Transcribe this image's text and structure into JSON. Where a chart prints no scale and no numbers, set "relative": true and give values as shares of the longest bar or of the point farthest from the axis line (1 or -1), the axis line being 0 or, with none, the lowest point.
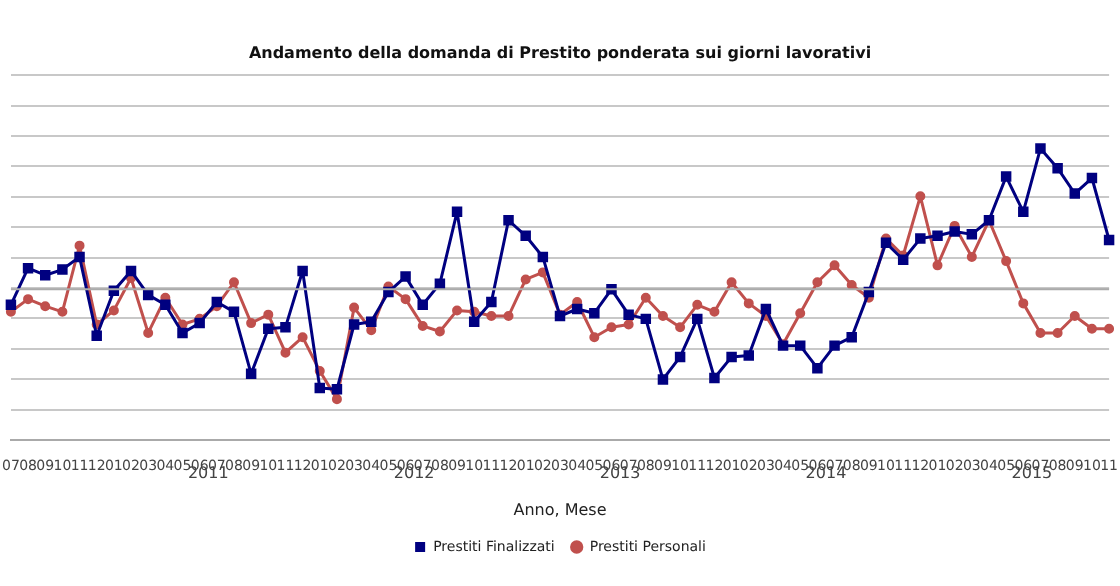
{
  "chart_data": {
    "type": "line",
    "title": "Andamento della domanda di Prestito ponderata sui giorni lavorativi",
    "xlabel": "Anno, Mese",
    "relative": true,
    "grid": "y",
    "legend": "bottom",
    "line_style": "solid",
    "categories": [
      "07",
      "08",
      "09",
      "10",
      "11",
      "12",
      "01",
      "02",
      "03",
      "04",
      "05",
      "06",
      "07",
      "08",
      "09",
      "10",
      "11",
      "12",
      "01",
      "02",
      "03",
      "04",
      "05",
      "06",
      "07",
      "08",
      "09",
      "10",
      "11",
      "12",
      "01",
      "02",
      "03",
      "04",
      "05",
      "06",
      "07",
      "08",
      "09",
      "10",
      "11",
      "12",
      "01",
      "02",
      "03",
      "04",
      "05",
      "06",
      "07",
      "08",
      "09",
      "10",
      "11",
      "12",
      "01",
      "02",
      "03",
      "04",
      "05",
      "06",
      "07",
      "08",
      "09",
      "10",
      "11"
    ],
    "annotations": [
      "2011",
      "2012",
      "2013",
      "2014",
      "2015"
    ],
    "series": [
      {
        "name": "Prestiti Finalizzati",
        "color": "#000080",
        "marker": "square",
        "values": [
          -0.11,
          0.15,
          0.1,
          0.14,
          0.23,
          -0.33,
          -0.01,
          0.13,
          -0.04,
          -0.11,
          -0.31,
          -0.24,
          -0.09,
          -0.16,
          -0.6,
          -0.28,
          -0.27,
          0.13,
          -0.7,
          -0.71,
          -0.25,
          -0.23,
          -0.02,
          0.09,
          -0.11,
          0.04,
          0.55,
          -0.23,
          -0.09,
          0.49,
          0.38,
          0.23,
          -0.19,
          -0.14,
          -0.17,
          0.0,
          -0.18,
          -0.21,
          -0.64,
          -0.48,
          -0.21,
          -0.63,
          -0.48,
          -0.47,
          -0.14,
          -0.4,
          -0.4,
          -0.56,
          -0.4,
          -0.34,
          -0.02,
          0.33,
          0.21,
          0.36,
          0.38,
          0.41,
          0.39,
          0.49,
          0.8,
          0.55,
          1.0,
          0.86,
          0.68,
          0.79,
          0.35
        ]
      },
      {
        "name": "Prestiti Personali",
        "color": "#c0504d",
        "marker": "circle",
        "values": [
          -0.16,
          -0.07,
          -0.12,
          -0.16,
          0.31,
          -0.25,
          -0.15,
          0.08,
          -0.31,
          -0.06,
          -0.25,
          -0.21,
          -0.12,
          0.05,
          -0.24,
          -0.18,
          -0.45,
          -0.34,
          -0.58,
          -0.78,
          -0.13,
          -0.29,
          0.02,
          -0.07,
          -0.26,
          -0.3,
          -0.15,
          -0.16,
          -0.19,
          -0.19,
          0.07,
          0.12,
          -0.18,
          -0.09,
          -0.34,
          -0.27,
          -0.25,
          -0.06,
          -0.19,
          -0.27,
          -0.11,
          -0.16,
          0.05,
          -0.1,
          -0.19,
          -0.39,
          -0.17,
          0.05,
          0.17,
          0.03,
          -0.06,
          0.36,
          0.24,
          0.66,
          0.17,
          0.45,
          0.23,
          0.49,
          0.2,
          -0.1,
          -0.31,
          -0.31,
          -0.19,
          -0.28,
          -0.28
        ]
      }
    ]
  }
}
